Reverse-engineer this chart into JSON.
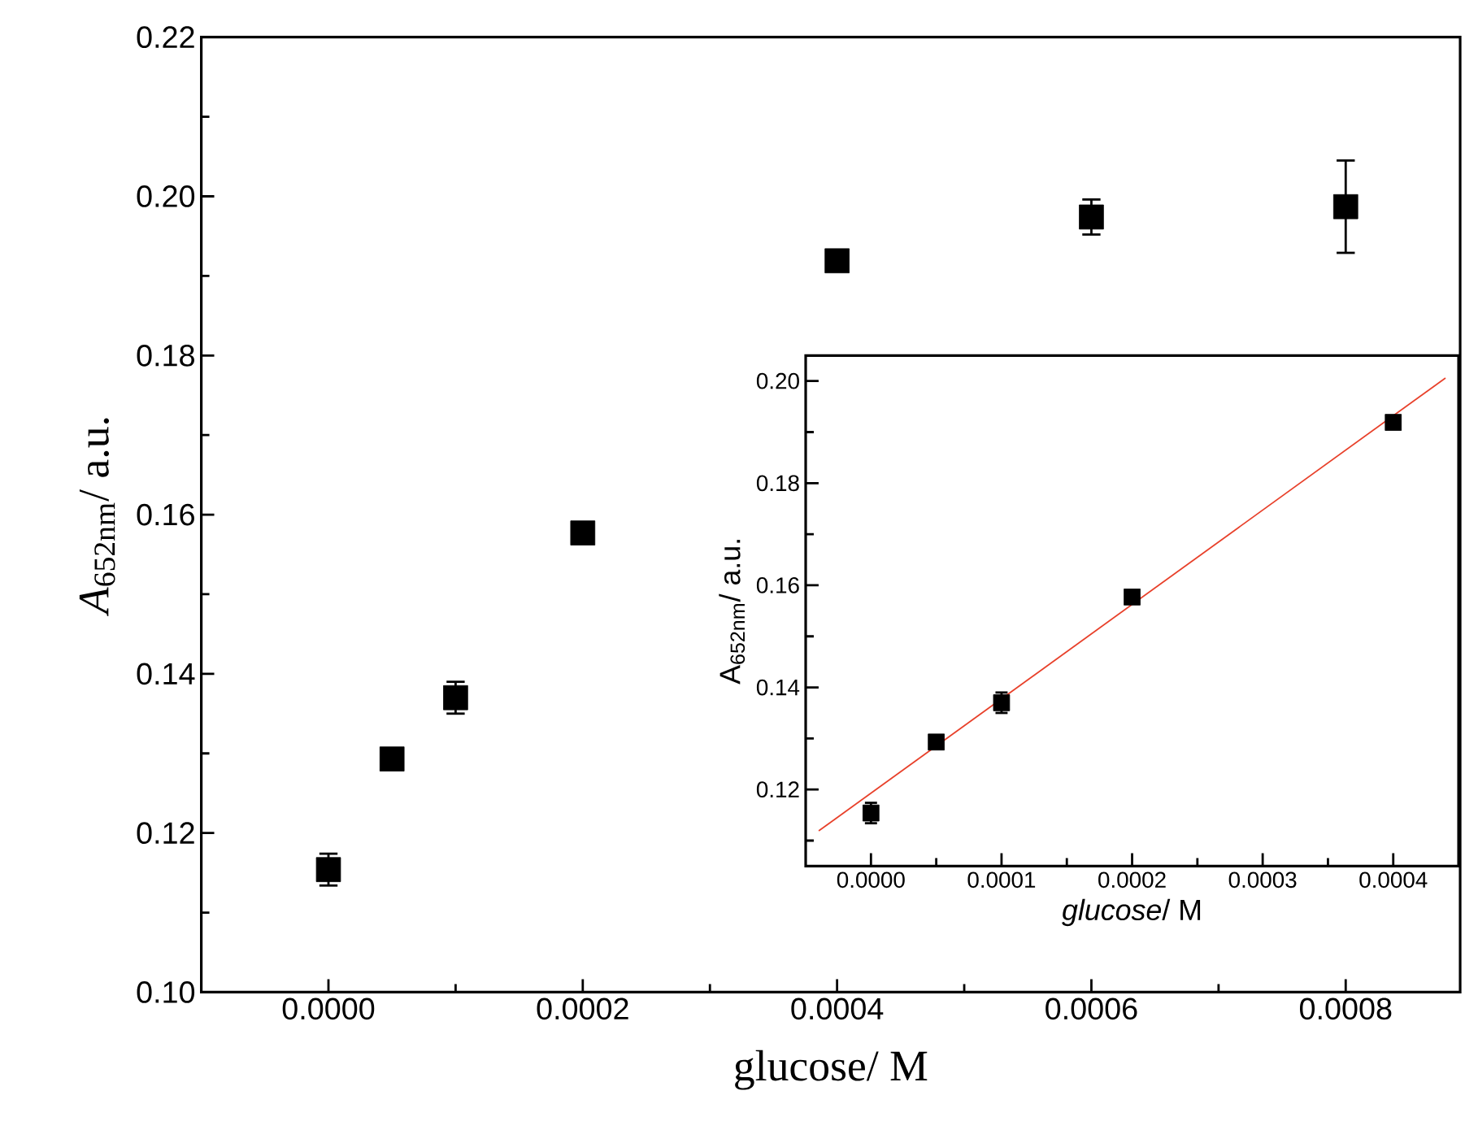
{
  "chart_data": [
    {
      "type": "scatter",
      "xlabel": "glucose/ M",
      "ylabel": "*A*$_{652nm}$/ a.u.",
      "xlim": [
        -0.0001,
        0.00089
      ],
      "ylim": [
        0.1,
        0.22
      ],
      "xticks": [
        {
          "value": 0,
          "label": "0.0000"
        },
        {
          "value": 0.0001,
          "label": null
        },
        {
          "value": 0.0002,
          "label": "0.0002"
        },
        {
          "value": 0.0003,
          "label": null
        },
        {
          "value": 0.0004,
          "label": "0.0004"
        },
        {
          "value": 0.0005,
          "label": null
        },
        {
          "value": 0.0006,
          "label": "0.0006"
        },
        {
          "value": 0.0007,
          "label": null
        },
        {
          "value": 0.0008,
          "label": "0.0008"
        }
      ],
      "yticks": [
        {
          "value": 0.1,
          "label": "0.10"
        },
        {
          "value": 0.11,
          "label": null
        },
        {
          "value": 0.12,
          "label": "0.12"
        },
        {
          "value": 0.13,
          "label": null
        },
        {
          "value": 0.14,
          "label": "0.14"
        },
        {
          "value": 0.15,
          "label": null
        },
        {
          "value": 0.16,
          "label": "0.16"
        },
        {
          "value": 0.17,
          "label": null
        },
        {
          "value": 0.18,
          "label": "0.18"
        },
        {
          "value": 0.19,
          "label": null
        },
        {
          "value": 0.2,
          "label": "0.20"
        },
        {
          "value": 0.21,
          "label": null
        },
        {
          "value": 0.22,
          "label": "0.22"
        }
      ],
      "series": [
        {
          "marker": "square",
          "color": "#000000",
          "x": [
            0,
            5e-05,
            0.0001,
            0.0002,
            0.0004,
            0.0006,
            0.0008
          ],
          "values": [
            0.1154,
            0.1293,
            0.137,
            0.1577,
            0.1919,
            0.1974,
            0.1987
          ],
          "errors": [
            0.002,
            0.0008,
            0.002,
            0.001,
            0.001,
            0.0022,
            0.0058
          ]
        }
      ]
    },
    {
      "type": "scatter",
      "xlabel": "*glucose*/ M",
      "ylabel": "A$_{652nm}$/ a.u.",
      "xlim": [
        -5e-05,
        0.00045
      ],
      "ylim": [
        0.105,
        0.205
      ],
      "xticks": [
        {
          "value": 0,
          "label": "0.0000"
        },
        {
          "value": 5e-05,
          "label": null
        },
        {
          "value": 0.0001,
          "label": "0.0001"
        },
        {
          "value": 0.00015,
          "label": null
        },
        {
          "value": 0.0002,
          "label": "0.0002"
        },
        {
          "value": 0.00025,
          "label": null
        },
        {
          "value": 0.0003,
          "label": "0.0003"
        },
        {
          "value": 0.00035,
          "label": null
        },
        {
          "value": 0.0004,
          "label": "0.0004"
        }
      ],
      "yticks": [
        {
          "value": 0.11,
          "label": null
        },
        {
          "value": 0.12,
          "label": "0.12"
        },
        {
          "value": 0.13,
          "label": null
        },
        {
          "value": 0.14,
          "label": "0.14"
        },
        {
          "value": 0.15,
          "label": null
        },
        {
          "value": 0.16,
          "label": "0.16"
        },
        {
          "value": 0.17,
          "label": null
        },
        {
          "value": 0.18,
          "label": "0.18"
        },
        {
          "value": 0.19,
          "label": null
        },
        {
          "value": 0.2,
          "label": "0.20"
        }
      ],
      "series": [
        {
          "marker": "square",
          "color": "#000000",
          "x": [
            0,
            5e-05,
            0.0001,
            0.0002,
            0.0004
          ],
          "values": [
            0.1154,
            0.1293,
            0.137,
            0.1577,
            0.1919
          ],
          "errors": [
            0.002,
            0.0008,
            0.002,
            0.001,
            0.001
          ]
        },
        {
          "type": "line",
          "color": "#e8402a",
          "x": [
            -4e-05,
            0.00044
          ],
          "values": [
            0.1119,
            0.2006
          ]
        }
      ]
    }
  ]
}
